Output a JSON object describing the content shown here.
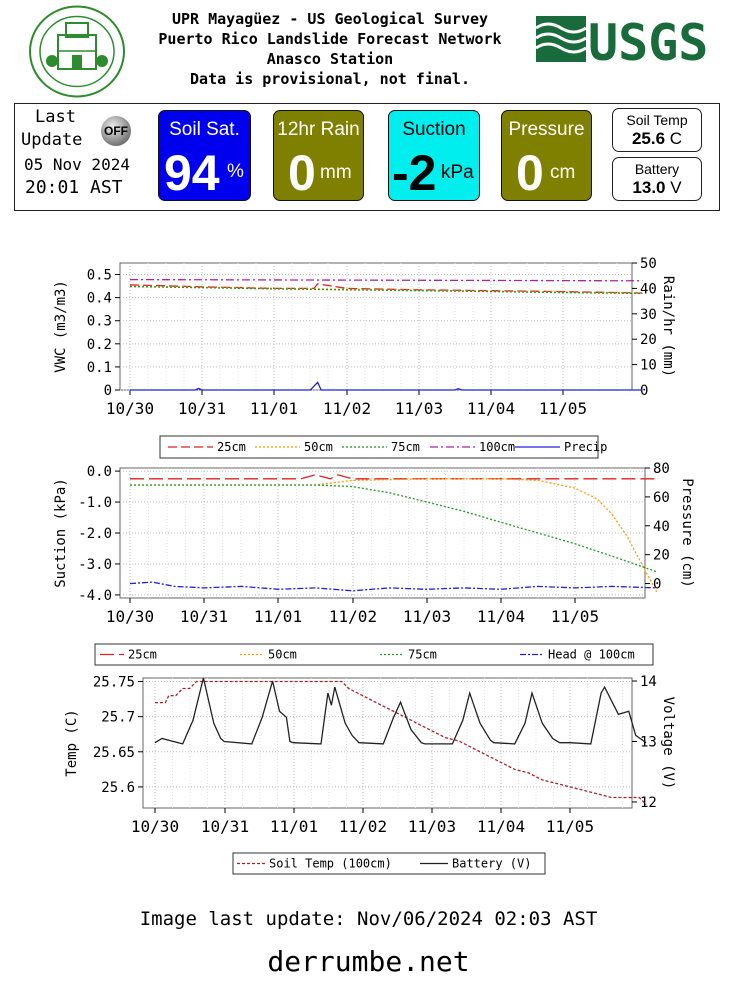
{
  "header": {
    "line1": "UPR Mayagüez - US Geological Survey",
    "line2": "Puerto Rico Landslide Forecast Network",
    "line3": "Anasco Station",
    "line4": "Data is provisional, not final.",
    "usgs_logo": "USGS"
  },
  "status": {
    "last_update_label_1": "Last",
    "last_update_label_2": "Update",
    "off_badge": "OFF",
    "date": "05 Nov 2024",
    "time": "20:01 AST"
  },
  "cards": {
    "soil_sat": {
      "label": "Soil Sat.",
      "value": "94",
      "unit": "%",
      "color": "#0000ee"
    },
    "rain": {
      "label": "12hr Rain",
      "value": "0",
      "unit": "mm",
      "color": "#808000"
    },
    "suction": {
      "label": "Suction",
      "value": "-2",
      "unit": "kPa",
      "color": "#00eeee"
    },
    "pressure": {
      "label": "Pressure",
      "value": "0",
      "unit": "cm",
      "color": "#808000"
    },
    "soil_temp": {
      "label": "Soil Temp",
      "value": "25.6",
      "unit": "C"
    },
    "battery": {
      "label": "Battery",
      "value": "13.0",
      "unit": "V"
    }
  },
  "chart_data": [
    {
      "type": "line",
      "ylabel": "VWC (m3/m3)",
      "y2label": "Rain/hr (mm)",
      "ylim": [
        0,
        0.55
      ],
      "yticks": [
        "0",
        "0.1",
        "0.2",
        "0.3",
        "0.4",
        "0.5"
      ],
      "y2lim": [
        0,
        50
      ],
      "y2ticks": [
        "0",
        "10",
        "20",
        "30",
        "40",
        "50"
      ],
      "xticks": [
        "10/30",
        "10/31",
        "11/01",
        "11/02",
        "11/03",
        "11/04",
        "11/05"
      ],
      "grid": true,
      "legend": [
        "25cm",
        "50cm",
        "75cm",
        "100cm",
        "Precip"
      ],
      "series": [
        {
          "name": "25cm",
          "axis": "left",
          "color": "#dd2222",
          "dash": "9,4",
          "x": [
            0,
            1,
            2,
            2.55,
            2.6,
            3,
            4,
            5,
            6,
            7.1
          ],
          "y": [
            0.455,
            0.447,
            0.44,
            0.44,
            0.46,
            0.44,
            0.434,
            0.43,
            0.426,
            0.42
          ]
        },
        {
          "name": "50cm",
          "axis": "left",
          "color": "#ff9900",
          "dash": "2,2",
          "x": [
            0,
            1,
            2,
            3,
            4,
            5,
            6,
            7.1
          ],
          "y": [
            0.45,
            0.445,
            0.44,
            0.436,
            0.432,
            0.428,
            0.424,
            0.42
          ]
        },
        {
          "name": "75cm",
          "axis": "left",
          "color": "#229922",
          "dash": "2,2",
          "x": [
            0,
            1,
            2,
            3,
            4,
            5,
            6,
            7.1
          ],
          "y": [
            0.448,
            0.443,
            0.438,
            0.434,
            0.43,
            0.426,
            0.422,
            0.418
          ]
        },
        {
          "name": "100cm",
          "axis": "left",
          "color": "#aa22aa",
          "dash": "8,3,2,3",
          "x": [
            0,
            7.1
          ],
          "y": [
            0.478,
            0.473
          ]
        },
        {
          "name": "Precip",
          "axis": "right",
          "color": "#2222dd",
          "dash": "",
          "x": [
            0,
            0.9,
            0.95,
            1.0,
            2.5,
            2.55,
            2.6,
            2.65,
            4.5,
            4.55,
            4.6,
            7.1
          ],
          "y": [
            0,
            0,
            0.6,
            0,
            0,
            1.5,
            3,
            0,
            0,
            0.5,
            0,
            0
          ]
        }
      ]
    },
    {
      "type": "line",
      "ylabel": "Suction (kPa)",
      "y2label": "Pressure (cm)",
      "ylim": [
        -4.1,
        0.1
      ],
      "yticks": [
        "-4.0",
        "-3.0",
        "-2.0",
        "-1.0",
        "0.0"
      ],
      "y2lim": [
        -10,
        80
      ],
      "y2ticks": [
        "0",
        "20",
        "40",
        "60",
        "80"
      ],
      "xticks": [
        "10/30",
        "10/31",
        "11/01",
        "11/02",
        "11/03",
        "11/04",
        "11/05"
      ],
      "grid": true,
      "legend": [
        "25cm",
        "50cm",
        "75cm",
        "Head @ 100cm"
      ],
      "series": [
        {
          "name": "25cm",
          "axis": "left",
          "color": "#dd2222",
          "dash": "14,5",
          "x": [
            0,
            2.3,
            2.5,
            2.7,
            2.8,
            3.0,
            7.1
          ],
          "y": [
            -0.25,
            -0.25,
            -0.12,
            -0.25,
            -0.12,
            -0.25,
            -0.25
          ]
        },
        {
          "name": "50cm",
          "axis": "left",
          "color": "#ff9900",
          "dash": "2,2",
          "x": [
            0,
            2.5,
            3.0,
            4.0,
            5.0,
            5.5,
            6.0,
            6.3,
            6.5,
            6.7,
            6.9,
            7.1
          ],
          "y": [
            -0.45,
            -0.45,
            -0.3,
            -0.25,
            -0.25,
            -0.3,
            -0.55,
            -0.9,
            -1.4,
            -2.1,
            -3.0,
            -3.9
          ]
        },
        {
          "name": "75cm",
          "axis": "left",
          "color": "#229922",
          "dash": "2,2",
          "x": [
            0,
            2.5,
            3.0,
            3.5,
            4.0,
            4.5,
            5.0,
            5.5,
            6.0,
            6.5,
            7.1
          ],
          "y": [
            -0.45,
            -0.45,
            -0.5,
            -0.7,
            -1.0,
            -1.3,
            -1.65,
            -2.0,
            -2.35,
            -2.75,
            -3.25
          ]
        },
        {
          "name": "Head @ 100cm",
          "axis": "right",
          "color": "#2222dd",
          "dash": "6,2,2,2",
          "x": [
            0,
            0.3,
            0.6,
            1.0,
            1.5,
            2.0,
            2.5,
            3.0,
            3.5,
            4.0,
            4.5,
            5.0,
            5.5,
            6.0,
            6.5,
            7.1
          ],
          "y": [
            0,
            1,
            -2,
            -3,
            -2,
            -4,
            -3,
            -5,
            -3,
            -4,
            -3,
            -4,
            -2,
            -3,
            -2,
            -3
          ]
        }
      ]
    },
    {
      "type": "line",
      "ylabel": "Temp (C)",
      "y2label": "Voltage (V)",
      "ylim": [
        25.57,
        25.755
      ],
      "yticks": [
        "25.6",
        "25.65",
        "25.7",
        "25.75"
      ],
      "y2lim": [
        11.9,
        14.05
      ],
      "y2ticks": [
        "12",
        "13",
        "14"
      ],
      "xticks": [
        "10/30",
        "10/31",
        "11/01",
        "11/02",
        "11/03",
        "11/04",
        "11/05"
      ],
      "grid": true,
      "legend": [
        "Soil Temp (100cm)",
        "Battery (V)"
      ],
      "series": [
        {
          "name": "Soil Temp (100cm)",
          "axis": "left",
          "color": "#aa2222",
          "dash": "3,2",
          "x": [
            0,
            0.15,
            0.2,
            0.3,
            0.4,
            0.5,
            0.6,
            0.7,
            2.7,
            2.8,
            3.0,
            3.2,
            3.4,
            3.6,
            3.8,
            4.0,
            4.2,
            4.4,
            4.6,
            4.8,
            5.0,
            5.2,
            5.4,
            5.6,
            5.8,
            6.0,
            6.2,
            6.4,
            6.6,
            6.8,
            7.0,
            7.1
          ],
          "y": [
            25.72,
            25.72,
            25.73,
            25.73,
            25.74,
            25.74,
            25.75,
            25.75,
            25.75,
            25.74,
            25.73,
            25.72,
            25.71,
            25.7,
            25.69,
            25.68,
            25.67,
            25.665,
            25.655,
            25.645,
            25.635,
            25.625,
            25.62,
            25.61,
            25.605,
            25.6,
            25.595,
            25.59,
            25.585,
            25.585,
            25.585,
            25.575
          ]
        },
        {
          "name": "Battery (V)",
          "axis": "right",
          "color": "#222222",
          "dash": "",
          "x": [
            0,
            0.1,
            0.4,
            0.55,
            0.7,
            0.85,
            0.95,
            1.0,
            1.4,
            1.55,
            1.7,
            1.8,
            1.9,
            1.95,
            2.0,
            2.4,
            2.5,
            2.55,
            2.6,
            2.75,
            2.85,
            2.95,
            3.3,
            3.45,
            3.55,
            3.7,
            3.85,
            3.9,
            4.3,
            4.45,
            4.55,
            4.7,
            4.85,
            4.9,
            5.2,
            5.35,
            5.45,
            5.6,
            5.75,
            5.85,
            6.0,
            6.3,
            6.45,
            6.5,
            6.7,
            6.85,
            6.95,
            7.1
          ],
          "y": [
            12.98,
            13.05,
            12.96,
            13.35,
            14.05,
            13.3,
            13.05,
            13.0,
            12.96,
            13.4,
            14.0,
            13.5,
            13.4,
            13.0,
            12.98,
            12.96,
            13.8,
            13.6,
            13.9,
            13.3,
            13.1,
            12.98,
            12.96,
            13.4,
            13.65,
            13.2,
            12.98,
            12.96,
            12.96,
            13.35,
            13.8,
            13.3,
            13.02,
            12.98,
            12.96,
            13.3,
            13.8,
            13.3,
            13.05,
            12.98,
            12.98,
            12.96,
            13.8,
            13.9,
            13.45,
            13.5,
            13.1,
            12.98
          ]
        }
      ]
    }
  ],
  "footer": {
    "image_update": "Image last update: Nov/06/2024 02:03  AST",
    "site": "derrumbe.net"
  }
}
